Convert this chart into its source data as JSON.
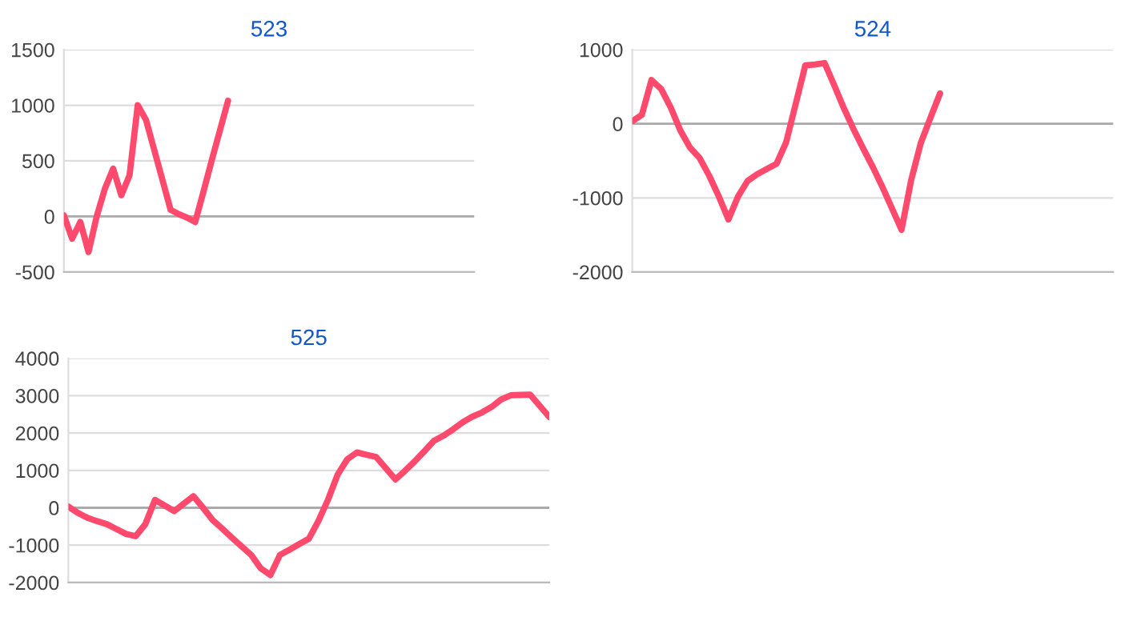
{
  "chart_data": [
    {
      "type": "line",
      "title": "523",
      "categories": [
        null,
        null,
        null,
        null,
        null,
        null,
        null,
        null,
        null,
        null,
        null,
        null,
        null,
        null,
        null,
        null,
        null,
        null,
        null,
        null,
        null,
        null,
        null,
        null,
        null,
        null,
        null,
        null,
        null,
        null,
        null,
        null,
        null,
        null,
        null,
        null,
        null,
        null,
        null,
        null,
        null,
        null,
        null,
        null,
        null,
        null,
        null,
        null,
        null,
        null,
        null
      ],
      "ylim": [
        -500,
        1500
      ],
      "yticks": [
        -500,
        0,
        500,
        1000,
        1500
      ],
      "grid": "y",
      "marker": "none",
      "line_style": "solid",
      "series": [
        {
          "color": "#ff4a6e",
          "values": [
            10,
            -200,
            -50,
            -320,
            0,
            250,
            430,
            190,
            370,
            1000,
            870,
            600,
            330,
            60,
            20,
            -10,
            -50,
            220,
            500,
            770,
            1040,
            null,
            null,
            null,
            null,
            null,
            null,
            null,
            null,
            null,
            null,
            null,
            null,
            null,
            null,
            null,
            null,
            null,
            null,
            null,
            null,
            null,
            null,
            null,
            null,
            null,
            null,
            null,
            null,
            null,
            null
          ]
        }
      ]
    },
    {
      "type": "line",
      "title": "524",
      "categories": [
        null,
        null,
        null,
        null,
        null,
        null,
        null,
        null,
        null,
        null,
        null,
        null,
        null,
        null,
        null,
        null,
        null,
        null,
        null,
        null,
        null,
        null,
        null,
        null,
        null,
        null,
        null,
        null,
        null,
        null,
        null,
        null,
        null,
        null,
        null,
        null,
        null,
        null,
        null,
        null,
        null,
        null,
        null,
        null,
        null,
        null,
        null,
        null,
        null,
        null,
        null
      ],
      "ylim": [
        -2000,
        1000
      ],
      "yticks": [
        -2000,
        -1000,
        0,
        1000
      ],
      "grid": "y",
      "marker": "none",
      "line_style": "solid",
      "series": [
        {
          "color": "#ff4a6e",
          "values": [
            35,
            120,
            590,
            470,
            220,
            -90,
            -320,
            -460,
            -700,
            -980,
            -1290,
            -980,
            -770,
            -680,
            -610,
            -540,
            -250,
            270,
            790,
            800,
            820,
            520,
            210,
            -70,
            -330,
            -580,
            -850,
            -1140,
            -1430,
            -760,
            -260,
            80,
            410,
            null,
            null,
            null,
            null,
            null,
            null,
            null,
            null,
            null,
            null,
            null,
            null,
            null,
            null,
            null,
            null,
            null,
            null
          ]
        }
      ]
    },
    {
      "type": "line",
      "title": "525",
      "categories": [
        null,
        null,
        null,
        null,
        null,
        null,
        null,
        null,
        null,
        null,
        null,
        null,
        null,
        null,
        null,
        null,
        null,
        null,
        null,
        null,
        null,
        null,
        null,
        null,
        null,
        null,
        null,
        null,
        null,
        null,
        null,
        null,
        null,
        null,
        null,
        null,
        null,
        null,
        null,
        null,
        null,
        null,
        null,
        null,
        null,
        null,
        null,
        null,
        null,
        null,
        null
      ],
      "ylim": [
        -2000,
        4000
      ],
      "yticks": [
        -2000,
        -1000,
        0,
        1000,
        2000,
        3000,
        4000
      ],
      "grid": "y",
      "marker": "none",
      "line_style": "solid",
      "series": [
        {
          "color": "#ff4a6e",
          "values": [
            30,
            -140,
            -270,
            -360,
            -440,
            -570,
            -700,
            -760,
            -440,
            210,
            60,
            -90,
            110,
            310,
            0,
            -330,
            -560,
            -800,
            -1030,
            -1260,
            -1620,
            -1800,
            -1260,
            -1120,
            -970,
            -830,
            -350,
            220,
            890,
            1300,
            1480,
            1420,
            1360,
            1060,
            760,
            990,
            1240,
            1510,
            1790,
            1930,
            2100,
            2290,
            2440,
            2550,
            2700,
            2900,
            3010,
            3020,
            3030,
            2730,
            2430
          ]
        }
      ]
    }
  ]
}
